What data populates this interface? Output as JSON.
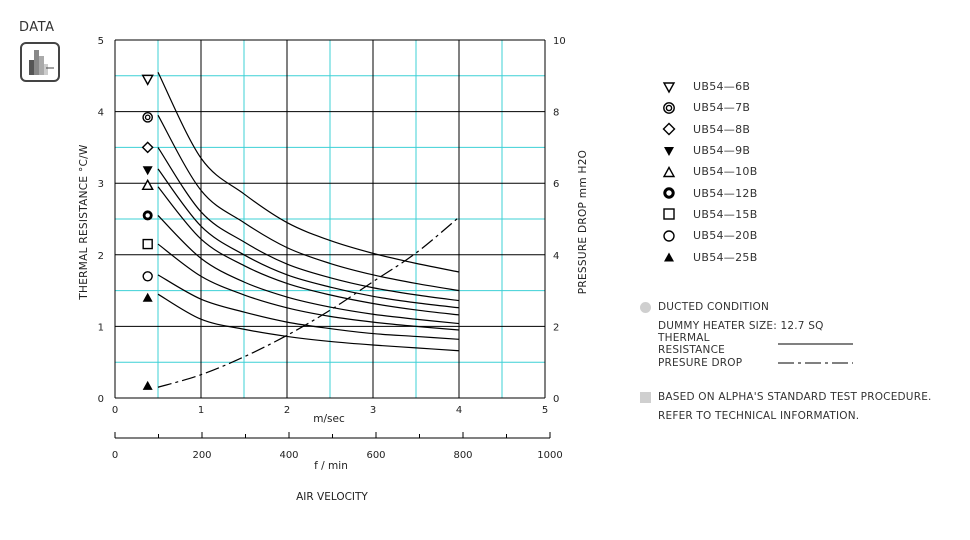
{
  "logo": {
    "text": "DATA"
  },
  "chart_data": {
    "type": "line",
    "x_axis_top": {
      "label": "m/sec",
      "ticks": [
        "0",
        "1",
        "2",
        "3",
        "4",
        "5"
      ],
      "range": [
        0,
        5
      ]
    },
    "x_axis_bottom": {
      "label": "f / min",
      "ticks": [
        "0",
        "200",
        "400",
        "600",
        "800",
        "1000"
      ],
      "range": [
        0,
        1000
      ]
    },
    "x_title": "AIR VELOCITY",
    "y_left": {
      "label": "THERMAL RESISTANCE  °C/W",
      "ticks": [
        "0",
        "1",
        "2",
        "3",
        "4",
        "5"
      ],
      "range": [
        0,
        5
      ]
    },
    "y_right": {
      "label": "PRESSURE  DROP  mm H2O",
      "ticks": [
        "0",
        "2",
        "4",
        "6",
        "8",
        "10"
      ],
      "range": [
        0,
        10
      ]
    },
    "grid": true,
    "series": [
      {
        "name": "UB54-6B",
        "marker": "triangle-down-open",
        "marker_value": 4.45,
        "x": [
          0.5,
          1,
          1.5,
          2,
          2.5,
          3,
          3.5,
          4
        ],
        "values": [
          4.55,
          3.35,
          2.85,
          2.45,
          2.2,
          2.02,
          1.88,
          1.76
        ]
      },
      {
        "name": "UB54-7B",
        "marker": "double-circle",
        "marker_value": 3.92,
        "x": [
          0.5,
          1,
          1.5,
          2,
          2.5,
          3,
          3.5,
          4
        ],
        "values": [
          3.95,
          2.9,
          2.45,
          2.1,
          1.88,
          1.72,
          1.6,
          1.5
        ]
      },
      {
        "name": "UB54-8B",
        "marker": "diamond-open",
        "marker_value": 3.5,
        "x": [
          0.5,
          1,
          1.5,
          2,
          2.5,
          3,
          3.5,
          4
        ],
        "values": [
          3.5,
          2.6,
          2.18,
          1.87,
          1.68,
          1.54,
          1.44,
          1.36
        ]
      },
      {
        "name": "UB54-9B",
        "marker": "triangle-down-filled",
        "marker_value": 3.18,
        "x": [
          0.5,
          1,
          1.5,
          2,
          2.5,
          3,
          3.5,
          4
        ],
        "values": [
          3.2,
          2.4,
          2.0,
          1.72,
          1.55,
          1.42,
          1.33,
          1.26
        ]
      },
      {
        "name": "UB54-10B",
        "marker": "triangle-up-open",
        "marker_value": 2.97,
        "x": [
          0.5,
          1,
          1.5,
          2,
          2.5,
          3,
          3.5,
          4
        ],
        "values": [
          2.95,
          2.22,
          1.85,
          1.6,
          1.44,
          1.32,
          1.23,
          1.16
        ]
      },
      {
        "name": "UB54-12B",
        "marker": "circle-bold",
        "marker_value": 2.55,
        "x": [
          0.5,
          1,
          1.5,
          2,
          2.5,
          3,
          3.5,
          4
        ],
        "values": [
          2.55,
          1.95,
          1.62,
          1.41,
          1.27,
          1.17,
          1.1,
          1.04
        ]
      },
      {
        "name": "UB54-15B",
        "marker": "square-open",
        "marker_value": 2.15,
        "x": [
          0.5,
          1,
          1.5,
          2,
          2.5,
          3,
          3.5,
          4
        ],
        "values": [
          2.15,
          1.7,
          1.44,
          1.26,
          1.14,
          1.06,
          1.0,
          0.95
        ]
      },
      {
        "name": "UB54-20B",
        "marker": "circle-open",
        "marker_value": 1.7,
        "x": [
          0.5,
          1,
          1.5,
          2,
          2.5,
          3,
          3.5,
          4
        ],
        "values": [
          1.72,
          1.38,
          1.2,
          1.06,
          0.97,
          0.9,
          0.86,
          0.82
        ]
      },
      {
        "name": "UB54-25B",
        "marker": "triangle-up-filled",
        "marker_value": 1.4,
        "x": [
          0.5,
          1,
          1.5,
          2,
          2.5,
          3,
          3.5,
          4
        ],
        "values": [
          1.45,
          1.1,
          0.96,
          0.86,
          0.79,
          0.74,
          0.7,
          0.66
        ]
      }
    ],
    "pressure_drop": {
      "axis": "right",
      "style": "dash-dot",
      "marker_value_left": 0.17,
      "x": [
        0.5,
        1,
        1.5,
        2,
        2.5,
        3,
        3.5,
        4
      ],
      "values": [
        0.3,
        0.65,
        1.15,
        1.75,
        2.45,
        3.25,
        4.05,
        5.05
      ]
    }
  },
  "legend": [
    {
      "label": "UB54—6B",
      "symbol": "triangle-down-open"
    },
    {
      "label": "UB54—7B",
      "symbol": "double-circle"
    },
    {
      "label": "UB54—8B",
      "symbol": "diamond-open"
    },
    {
      "label": "UB54—9B",
      "symbol": "triangle-down-filled"
    },
    {
      "label": "UB54—10B",
      "symbol": "triangle-up-open"
    },
    {
      "label": "UB54—12B",
      "symbol": "circle-bold"
    },
    {
      "label": "UB54—15B",
      "symbol": "square-open"
    },
    {
      "label": "UB54—20B",
      "symbol": "circle-open"
    },
    {
      "label": "UB54—25B",
      "symbol": "triangle-up-filled"
    }
  ],
  "notes": {
    "ducted": "DUCTED CONDITION",
    "heater": "DUMMY HEATER SIZE: 12.7 SQ",
    "thermal": "THERMAL RESISTANCE",
    "pressure": "PRESURE DROP",
    "based_1": "BASED ON ALPHA'S STANDARD TEST PROCEDURE.",
    "based_2": "REFER TO TECHNICAL INFORMATION."
  },
  "colors": {
    "grid_major": "#000000",
    "grid_minor": "#3dd0d6",
    "curve": "#000000",
    "bullet": "#cfcfcf"
  }
}
